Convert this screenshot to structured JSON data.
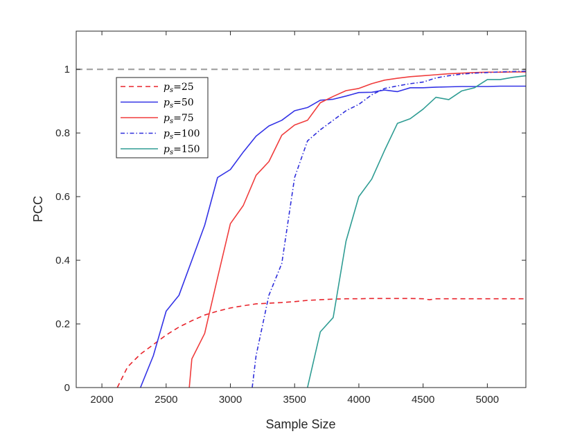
{
  "chart_data": {
    "type": "line",
    "xlabel": "Sample Size",
    "ylabel": "PCC",
    "xlim": [
      1800,
      5300
    ],
    "ylim": [
      0,
      1.12
    ],
    "xticks": [
      2000,
      2500,
      3000,
      3500,
      4000,
      4500,
      5000
    ],
    "yticks": [
      0,
      0.2,
      0.4,
      0.6,
      0.8,
      1
    ],
    "ytick_labels": [
      "0",
      "0.2",
      "0.4",
      "0.6",
      "0.8",
      "1"
    ],
    "grid": false,
    "legend_position": "upper-left",
    "reference_line": {
      "y": 1,
      "color": "#a0a0a0",
      "style": "dashed"
    },
    "series": [
      {
        "name": "p_s=25",
        "legend_base": "p",
        "legend_sub": "s",
        "legend_val": "=25",
        "color": "#e8232b",
        "dash": "7,5",
        "x": [
          2120,
          2200,
          2300,
          2400,
          2500,
          2600,
          2700,
          2800,
          2900,
          3000,
          3100,
          3200,
          3300,
          3400,
          3500,
          3600,
          3700,
          3800,
          3900,
          4000,
          4100,
          4200,
          4300,
          4400,
          4500,
          4550,
          4600,
          4700,
          4800,
          4900,
          5000,
          5100,
          5200,
          5300
        ],
        "y": [
          0.0,
          0.065,
          0.105,
          0.135,
          0.165,
          0.19,
          0.21,
          0.228,
          0.24,
          0.25,
          0.257,
          0.263,
          0.265,
          0.267,
          0.27,
          0.274,
          0.276,
          0.278,
          0.279,
          0.279,
          0.28,
          0.28,
          0.28,
          0.28,
          0.279,
          0.276,
          0.279,
          0.279,
          0.279,
          0.279,
          0.279,
          0.279,
          0.279,
          0.279
        ]
      },
      {
        "name": "p_s=50",
        "legend_base": "p",
        "legend_sub": "s",
        "legend_val": "=50",
        "color": "#3232e6",
        "dash": "",
        "x": [
          2300,
          2400,
          2500,
          2600,
          2700,
          2800,
          2900,
          3000,
          3100,
          3200,
          3300,
          3400,
          3500,
          3600,
          3700,
          3800,
          3900,
          4000,
          4100,
          4200,
          4300,
          4400,
          4500,
          4600,
          4700,
          4800,
          4900,
          5000,
          5100,
          5200,
          5300
        ],
        "y": [
          0.0,
          0.1,
          0.24,
          0.29,
          0.4,
          0.51,
          0.66,
          0.685,
          0.74,
          0.79,
          0.822,
          0.84,
          0.87,
          0.88,
          0.903,
          0.906,
          0.916,
          0.927,
          0.928,
          0.935,
          0.93,
          0.942,
          0.942,
          0.944,
          0.945,
          0.946,
          0.946,
          0.946,
          0.947,
          0.947,
          0.947
        ]
      },
      {
        "name": "p_s=75",
        "legend_base": "p",
        "legend_sub": "s",
        "legend_val": "=75",
        "color": "#f03c3c",
        "dash": "",
        "x": [
          2680,
          2700,
          2800,
          2900,
          3000,
          3100,
          3200,
          3300,
          3400,
          3500,
          3600,
          3700,
          3800,
          3900,
          4000,
          4100,
          4200,
          4300,
          4400,
          4500,
          4600,
          4700,
          4800,
          4900,
          5000,
          5100,
          5200,
          5300
        ],
        "y": [
          0.0,
          0.09,
          0.17,
          0.345,
          0.515,
          0.572,
          0.667,
          0.71,
          0.793,
          0.825,
          0.84,
          0.895,
          0.915,
          0.933,
          0.94,
          0.955,
          0.966,
          0.972,
          0.977,
          0.98,
          0.983,
          0.986,
          0.988,
          0.99,
          0.991,
          0.991,
          0.992,
          0.992
        ]
      },
      {
        "name": "p_s=100",
        "legend_base": "p",
        "legend_sub": "s",
        "legend_val": "=100",
        "color": "#2e2edb",
        "dash": "6,3,1.5,3",
        "x": [
          3170,
          3200,
          3300,
          3400,
          3500,
          3600,
          3700,
          3800,
          3900,
          4000,
          4100,
          4200,
          4300,
          4400,
          4500,
          4600,
          4700,
          4800,
          4900,
          5000,
          5100,
          5200,
          5300
        ],
        "y": [
          0.0,
          0.1,
          0.29,
          0.39,
          0.66,
          0.775,
          0.81,
          0.84,
          0.87,
          0.89,
          0.92,
          0.94,
          0.948,
          0.955,
          0.96,
          0.973,
          0.98,
          0.985,
          0.988,
          0.99,
          0.992,
          0.993,
          0.994
        ]
      },
      {
        "name": "p_s=150",
        "legend_base": "p",
        "legend_sub": "s",
        "legend_val": "=150",
        "color": "#2e9c93",
        "dash": "",
        "x": [
          3600,
          3700,
          3800,
          3900,
          4000,
          4100,
          4200,
          4300,
          4400,
          4500,
          4600,
          4700,
          4800,
          4900,
          5000,
          5100,
          5200,
          5300
        ],
        "y": [
          0.0,
          0.175,
          0.22,
          0.46,
          0.6,
          0.655,
          0.745,
          0.83,
          0.845,
          0.875,
          0.912,
          0.905,
          0.932,
          0.942,
          0.968,
          0.968,
          0.975,
          0.98
        ]
      }
    ]
  }
}
